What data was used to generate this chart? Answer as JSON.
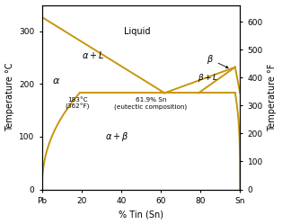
{
  "xlabel": "% Tin (Sn)",
  "ylabel_left": "Temperature °C",
  "ylabel_right": "Temperature °F",
  "xlim": [
    0,
    100
  ],
  "ylim_C": [
    0,
    350
  ],
  "ylim_F": [
    0,
    660
  ],
  "xtick_labels": [
    "Pb",
    "20",
    "40",
    "60",
    "80",
    "Sn"
  ],
  "xtick_positions": [
    0,
    20,
    40,
    60,
    80,
    100
  ],
  "yticks_C": [
    0,
    100,
    200,
    300
  ],
  "yticks_F": [
    0,
    100,
    200,
    300,
    400,
    500,
    600
  ],
  "line_color": "#C8960C",
  "background": "#ffffff",
  "eutectic_temp_C": 183,
  "eutectic_comp": 61.9,
  "alpha_solvus_top_comp": 19,
  "beta_solvus_top_comp": 97.5,
  "Pb_melt": 327,
  "Sn_melt": 232,
  "beta_peak_x": 97.5,
  "beta_peak_y": 232,
  "beta_loop_left_x": 79,
  "beta_loop_eutectic_x": 97.5,
  "label_Liquid": [
    48,
    300
  ],
  "label_aL": [
    26,
    255
  ],
  "label_a": [
    7,
    205
  ],
  "label_ab": [
    38,
    100
  ],
  "label_b": [
    84,
    240
  ],
  "label_bL": [
    84,
    212
  ],
  "ann_eut_temp_x": 18,
  "ann_eut_temp_y": 175,
  "ann_eut_comp_x": 55,
  "ann_eut_comp_y": 175
}
